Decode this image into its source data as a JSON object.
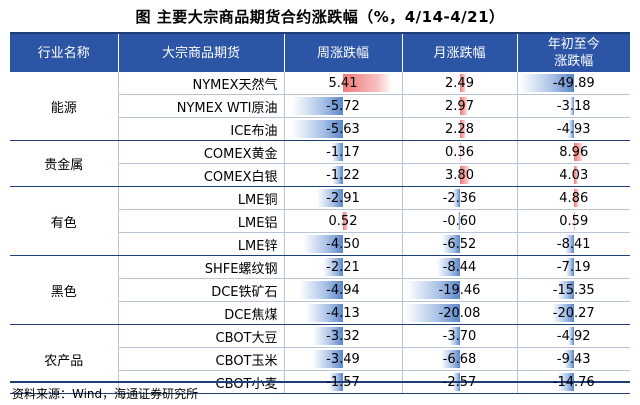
{
  "title": "图 主要大宗商品期货合约涨跌幅（%，4/14-4/21）",
  "headers": {
    "industry": "行业名称",
    "commodity": "大宗商品期货",
    "week": "周涨跌幅",
    "month": "月涨跌幅",
    "ytd": "年初至今\n涨跌幅"
  },
  "groups": [
    {
      "name": "能源",
      "rows": [
        {
          "name": "NYMEX天然气",
          "week": "5.41",
          "month": "2.49",
          "ytd": "-49.89"
        },
        {
          "name": "NYMEX WTI原油",
          "week": "-5.72",
          "month": "2.97",
          "ytd": "-3.18"
        },
        {
          "name": "ICE布油",
          "week": "-5.63",
          "month": "2.28",
          "ytd": "-4.93"
        }
      ]
    },
    {
      "name": "贵金属",
      "rows": [
        {
          "name": "COMEX黄金",
          "week": "-1.17",
          "month": "0.36",
          "ytd": "8.96"
        },
        {
          "name": "COMEX白银",
          "week": "-1.22",
          "month": "3.80",
          "ytd": "4.03"
        }
      ]
    },
    {
      "name": "有色",
      "rows": [
        {
          "name": "LME铜",
          "week": "-2.91",
          "month": "-2.36",
          "ytd": "4.86"
        },
        {
          "name": "LME铝",
          "week": "0.52",
          "month": "-0.60",
          "ytd": "0.59"
        },
        {
          "name": "LME锌",
          "week": "-4.50",
          "month": "-6.52",
          "ytd": "-8.41"
        }
      ]
    },
    {
      "name": "黑色",
      "rows": [
        {
          "name": "SHFE螺纹钢",
          "week": "-2.21",
          "month": "-8.44",
          "ytd": "-7.19"
        },
        {
          "name": "DCE铁矿石",
          "week": "-4.94",
          "month": "-19.46",
          "ytd": "-15.35"
        },
        {
          "name": "DCE焦煤",
          "week": "-4.13",
          "month": "-20.08",
          "ytd": "-20.27"
        }
      ]
    },
    {
      "name": "农产品",
      "rows": [
        {
          "name": "CBOT大豆",
          "week": "-3.32",
          "month": "-3.70",
          "ytd": "-4.92"
        },
        {
          "name": "CBOT玉米",
          "week": "-3.49",
          "month": "-6.68",
          "ytd": "-9.43"
        },
        {
          "name": "CBOT小麦",
          "week": "-1.57",
          "month": "-2.57",
          "ytd": "-14.76"
        }
      ]
    }
  ],
  "colors": {
    "header_bg": "#2c55a6",
    "negative_bar": "#5a86c9",
    "positive_bar": "#f07878"
  },
  "source": "资料来源：Wind，海通证券研究所"
}
